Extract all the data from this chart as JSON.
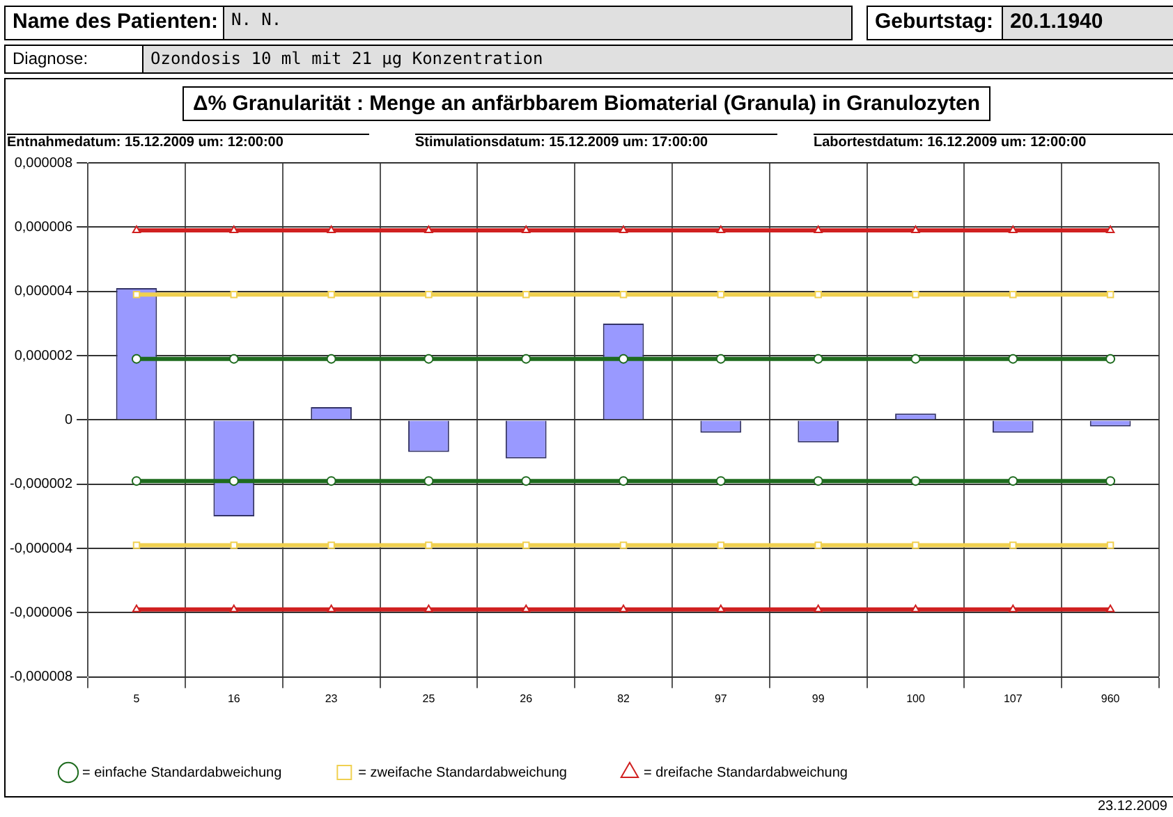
{
  "chart_data": {
    "type": "bar",
    "title": "Δ% Granularität : Menge an anfärbbarem Biomaterial (Granula) in Granulozyten",
    "annotations": [
      "Name des Patienten:",
      "N. N.",
      "Geburtstag:",
      "20.1.1940",
      "Diagnose:",
      "Ozondosis 10 ml mit 21 µg Konzentration",
      "Entnahmedatum: 15.12.2009 um: 12:00:00",
      "Stimulationsdatum: 15.12.2009 um: 17:00:00",
      "Labortestdatum: 16.12.2009 um: 12:00:00",
      "23.12.2009"
    ],
    "categories": [
      "5",
      "16",
      "23",
      "25",
      "26",
      "82",
      "97",
      "99",
      "100",
      "107",
      "960"
    ],
    "series": [
      {
        "color": "#9999ff",
        "values": [
          4.1e-06,
          -3e-06,
          4e-07,
          -1e-06,
          -1.2e-06,
          3e-06,
          -4e-07,
          -7e-07,
          2e-07,
          -4e-07,
          -2e-07
        ]
      },
      {
        "type": "line",
        "name": "= einfache Standardabweichung",
        "color": "#1e6b1e",
        "marker": "circle",
        "values": [
          1.9e-06,
          1.9e-06,
          1.9e-06,
          1.9e-06,
          1.9e-06,
          1.9e-06,
          1.9e-06,
          1.9e-06,
          1.9e-06,
          1.9e-06,
          1.9e-06
        ]
      },
      {
        "type": "line",
        "color": "#1e6b1e",
        "marker": "circle",
        "values": [
          -1.9e-06,
          -1.9e-06,
          -1.9e-06,
          -1.9e-06,
          -1.9e-06,
          -1.9e-06,
          -1.9e-06,
          -1.9e-06,
          -1.9e-06,
          -1.9e-06,
          -1.9e-06
        ]
      },
      {
        "type": "line",
        "name": "= zweifache Standardabweichung",
        "color": "#f0d050",
        "marker": "square",
        "values": [
          3.9e-06,
          3.9e-06,
          3.9e-06,
          3.9e-06,
          3.9e-06,
          3.9e-06,
          3.9e-06,
          3.9e-06,
          3.9e-06,
          3.9e-06,
          3.9e-06
        ]
      },
      {
        "type": "line",
        "color": "#f0d050",
        "marker": "square",
        "values": [
          -3.9e-06,
          -3.9e-06,
          -3.9e-06,
          -3.9e-06,
          -3.9e-06,
          -3.9e-06,
          -3.9e-06,
          -3.9e-06,
          -3.9e-06,
          -3.9e-06,
          -3.9e-06
        ]
      },
      {
        "type": "line",
        "name": "= dreifache Standardabweichung",
        "color": "#d02020",
        "marker": "triangle",
        "values": [
          5.9e-06,
          5.9e-06,
          5.9e-06,
          5.9e-06,
          5.9e-06,
          5.9e-06,
          5.9e-06,
          5.9e-06,
          5.9e-06,
          5.9e-06,
          5.9e-06
        ]
      },
      {
        "type": "line",
        "color": "#d02020",
        "marker": "triangle",
        "values": [
          -5.9e-06,
          -5.9e-06,
          -5.9e-06,
          -5.9e-06,
          -5.9e-06,
          -5.9e-06,
          -5.9e-06,
          -5.9e-06,
          -5.9e-06,
          -5.9e-06,
          -5.9e-06
        ]
      }
    ],
    "ylim": [
      -8e-06,
      8e-06
    ],
    "yticks": [
      {
        "value": -8e-06,
        "label": "-0,000008"
      },
      {
        "value": -6e-06,
        "label": "-0,000006"
      },
      {
        "value": -4e-06,
        "label": "-0,000004"
      },
      {
        "value": -2e-06,
        "label": "-0,000002"
      },
      {
        "value": 0,
        "label": "0"
      },
      {
        "value": 2e-06,
        "label": "0,000002"
      },
      {
        "value": 4e-06,
        "label": "0,000004"
      },
      {
        "value": 6e-06,
        "label": "0,000006"
      },
      {
        "value": 8e-06,
        "label": "0,000008"
      }
    ],
    "grid": true,
    "legend": "bottom"
  }
}
